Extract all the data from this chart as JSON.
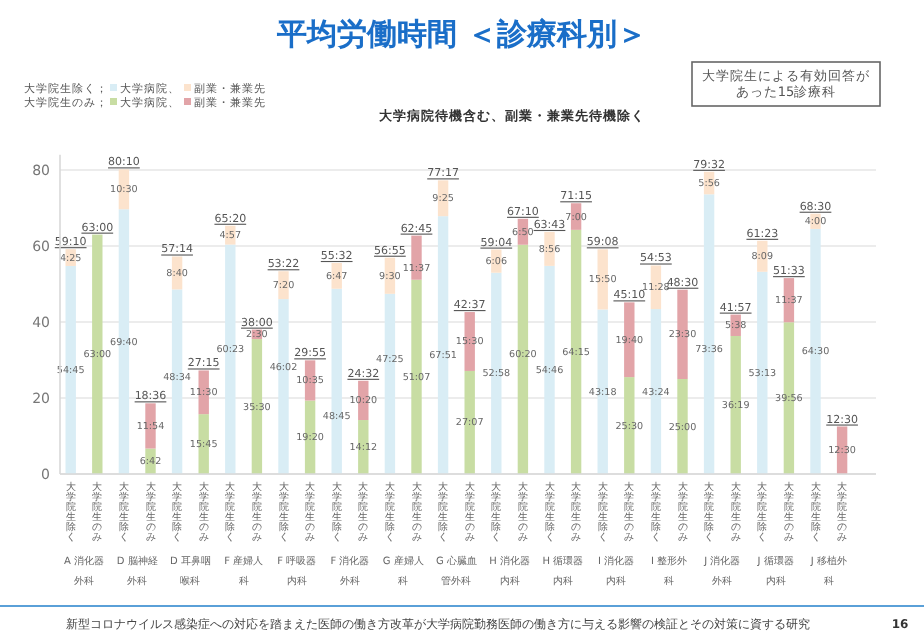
{
  "chart_data": {
    "type": "bar",
    "stacked": true,
    "title": "平均労働時間 ＜診療科別＞",
    "subtitle": "大学病院待機含む、副業・兼業先待機除く",
    "categories": [
      "大学院生除く",
      "大学院生のみ",
      "大学院生除く",
      "大学院生のみ",
      "大学院生除く",
      "大学院生のみ",
      "大学院生除く",
      "大学院生のみ",
      "大学院生除く",
      "大学院生のみ",
      "大学院生除く",
      "大学院生のみ",
      "大学院生除く",
      "大学院生のみ",
      "大学院生除く",
      "大学院生のみ",
      "大学院生除く",
      "大学院生のみ",
      "大学院生除く",
      "大学院生のみ",
      "大学院生除く",
      "大学院生のみ",
      "大学院生除く",
      "大学院生のみ",
      "大学院生除く",
      "大学院生のみ",
      "大学院生除く",
      "大学院生のみ",
      "大学院生除く",
      "大学院生のみ"
    ],
    "series": [
      {
        "name": "大学病院、",
        "color": "#d9edf5",
        "values": [
          54.75,
          null,
          69.67,
          null,
          48.57,
          null,
          60.38,
          null,
          46.03,
          null,
          48.75,
          null,
          47.42,
          null,
          67.85,
          null,
          52.97,
          null,
          54.77,
          null,
          43.3,
          null,
          43.4,
          null,
          73.6,
          null,
          53.22,
          null,
          64.5,
          null
        ],
        "value_labels": [
          "54:45",
          null,
          "69:40",
          null,
          "48:34",
          null,
          "60:23",
          null,
          "46:02",
          null,
          "48:45",
          null,
          "47:25",
          null,
          "67:51",
          null,
          "52:58",
          null,
          "54:46",
          null,
          "43:18",
          null,
          "43:24",
          null,
          "73:36",
          null,
          "53:13",
          null,
          "64:30",
          null
        ]
      },
      {
        "name": "副業・兼業先",
        "color": "#fce3cd",
        "values": [
          4.42,
          null,
          10.5,
          null,
          8.67,
          null,
          4.95,
          null,
          7.33,
          null,
          6.78,
          null,
          9.5,
          null,
          9.42,
          null,
          6.1,
          null,
          8.93,
          null,
          15.83,
          null,
          11.47,
          null,
          5.93,
          null,
          8.15,
          null,
          4.0,
          null
        ],
        "value_labels": [
          "4:25",
          null,
          "10:30",
          null,
          "8:40",
          null,
          "4:57",
          null,
          "7:20",
          null,
          "6:47",
          null,
          "9:30",
          null,
          "9:25",
          null,
          "6:06",
          null,
          "8:56",
          null,
          "15:50",
          null,
          "11:28",
          null,
          "5:56",
          null,
          "8:09",
          null,
          "4:00",
          null
        ]
      },
      {
        "name": "大学病院、",
        "color": "#c8dda3",
        "values": [
          null,
          63.0,
          null,
          6.7,
          null,
          15.75,
          null,
          35.5,
          null,
          19.33,
          null,
          14.2,
          null,
          51.12,
          null,
          27.12,
          null,
          60.33,
          null,
          64.25,
          null,
          25.5,
          null,
          25.0,
          null,
          36.32,
          null,
          39.93,
          null,
          null
        ],
        "value_labels": [
          null,
          "63:00",
          null,
          "6:42",
          null,
          "15:45",
          null,
          "35:30",
          null,
          "19:20",
          null,
          "14:12",
          null,
          "51:07",
          null,
          "27:07",
          null,
          "60:20",
          null,
          "64:15",
          null,
          "25:30",
          null,
          "25:00",
          null,
          "36:19",
          null,
          "39:56",
          null,
          null
        ]
      },
      {
        "name": "副業・兼業先",
        "color": "#e2a4a8",
        "values": [
          null,
          null,
          null,
          11.9,
          null,
          11.5,
          null,
          2.5,
          null,
          10.58,
          null,
          10.33,
          null,
          11.62,
          null,
          15.5,
          null,
          6.83,
          null,
          7.0,
          null,
          19.67,
          null,
          23.5,
          null,
          5.63,
          null,
          11.62,
          null,
          12.5
        ],
        "value_labels": [
          null,
          null,
          null,
          "11:54",
          null,
          "11:30",
          null,
          "2:30",
          null,
          "10:35",
          null,
          "10:20",
          null,
          "11:37",
          null,
          "15:30",
          null,
          "6:50",
          null,
          "7:00",
          null,
          "19:40",
          null,
          "23:30",
          null,
          "5:38",
          null,
          "11:37",
          null,
          "12:30"
        ]
      }
    ],
    "totals": [
      "59:10",
      "63:00",
      "80:10",
      "18:36",
      "57:14",
      "27:15",
      "65:20",
      "38:00",
      "53:22",
      "29:55",
      "55:32",
      "24:32",
      "56:55",
      "62:45",
      "77:17",
      "42:37",
      "59:04",
      "67:10",
      "63:43",
      "71:15",
      "59:08",
      "45:10",
      "54:53",
      "48:30",
      "79:32",
      "41:57",
      "61:23",
      "51:33",
      "68:30",
      "12:30"
    ],
    "ylim": [
      0,
      84
    ],
    "yticks": [
      0,
      20,
      40,
      60,
      80
    ],
    "grid": "y",
    "legend": "top left",
    "annotations": [
      "大学院生除く；",
      "大学院生のみ；",
      "大学院生による有効回答があった15診療科",
      "新型コロナウイルス感染症への対応を踏まえた医師の働き方改革が大学病院勤務医師の働き方に与える影響の検証とその対策に資する研究",
      "16",
      "A 消化器外科",
      "D 脳神経外科",
      "D 耳鼻咽喉科",
      "F 産婦人科",
      "F 呼吸器内科",
      "F 消化器外科",
      "G 産婦人科",
      "G 心臓血管外科",
      "H 消化器内科",
      "H 循環器内科",
      "I 消化器内科",
      "I 整形外科",
      "J 消化器外科",
      "J 循環器内科",
      "J 移植外科"
    ]
  }
}
